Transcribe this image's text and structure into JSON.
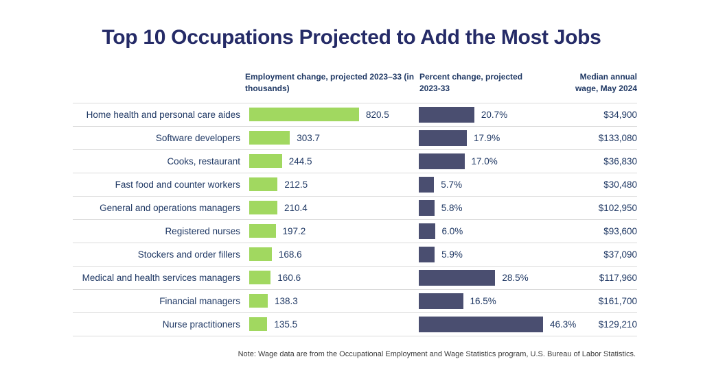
{
  "title": "Top 10 Occupations Projected to Add the Most Jobs",
  "headers": {
    "employment": "Employment change, projected 2023–33 (in thousands)",
    "percent": "Percent change, projected 2023-33",
    "wage": "Median annual wage, May 2024"
  },
  "note": "Note: Wage data are from the Occupational Employment and Wage Statistics program, U.S. Bureau of Labor Statistics.",
  "colors": {
    "green_bar": "#A1D860",
    "navy_bar": "#4A4E70",
    "text_navy": "#1F3864",
    "title_navy": "#252B67",
    "divider": "#DADADA",
    "note_gray": "#3B3B3B"
  },
  "chart_data": {
    "type": "bar",
    "orientation": "horizontal",
    "title": "Top 10 Occupations Projected to Add the Most Jobs",
    "categories": [
      "Home health and personal care aides",
      "Software developers",
      "Cooks, restaurant",
      "Fast food and counter workers",
      "General and operations managers",
      "Registered nurses",
      "Stockers and order fillers",
      "Medical and health services managers",
      "Financial managers",
      "Nurse practitioners"
    ],
    "series": [
      {
        "name": "Employment change, projected 2023–33 (in thousands)",
        "values": [
          820.5,
          303.7,
          244.5,
          212.5,
          210.4,
          197.2,
          168.6,
          160.6,
          138.3,
          135.5
        ],
        "labels": [
          "820.5",
          "303.7",
          "244.5",
          "212.5",
          "210.4",
          "197.2",
          "168.6",
          "160.6",
          "138.3",
          "135.5"
        ],
        "color": "#A1D860",
        "xlim": [
          0,
          850
        ]
      },
      {
        "name": "Percent change, projected 2023-33",
        "values": [
          20.7,
          17.9,
          17.0,
          5.7,
          5.8,
          6.0,
          5.9,
          28.5,
          16.5,
          46.3
        ],
        "labels": [
          "20.7%",
          "17.9%",
          "17.0%",
          "5.7%",
          "5.8%",
          "6.0%",
          "5.9%",
          "28.5%",
          "16.5%",
          "46.3%"
        ],
        "color": "#4A4E70",
        "xlim": [
          0,
          48
        ]
      },
      {
        "name": "Median annual wage, May 2024",
        "values": [
          34900,
          133080,
          36830,
          30480,
          102950,
          93600,
          37090,
          117960,
          161700,
          129210
        ],
        "labels": [
          "$34,900",
          "$133,080",
          "$36,830",
          "$30,480",
          "$102,950",
          "$93,600",
          "$37,090",
          "$117,960",
          "$161,700",
          "$129,210"
        ]
      }
    ],
    "legend": "none",
    "grid": "row-dividers-only",
    "value_labels": "end-of-bar"
  }
}
